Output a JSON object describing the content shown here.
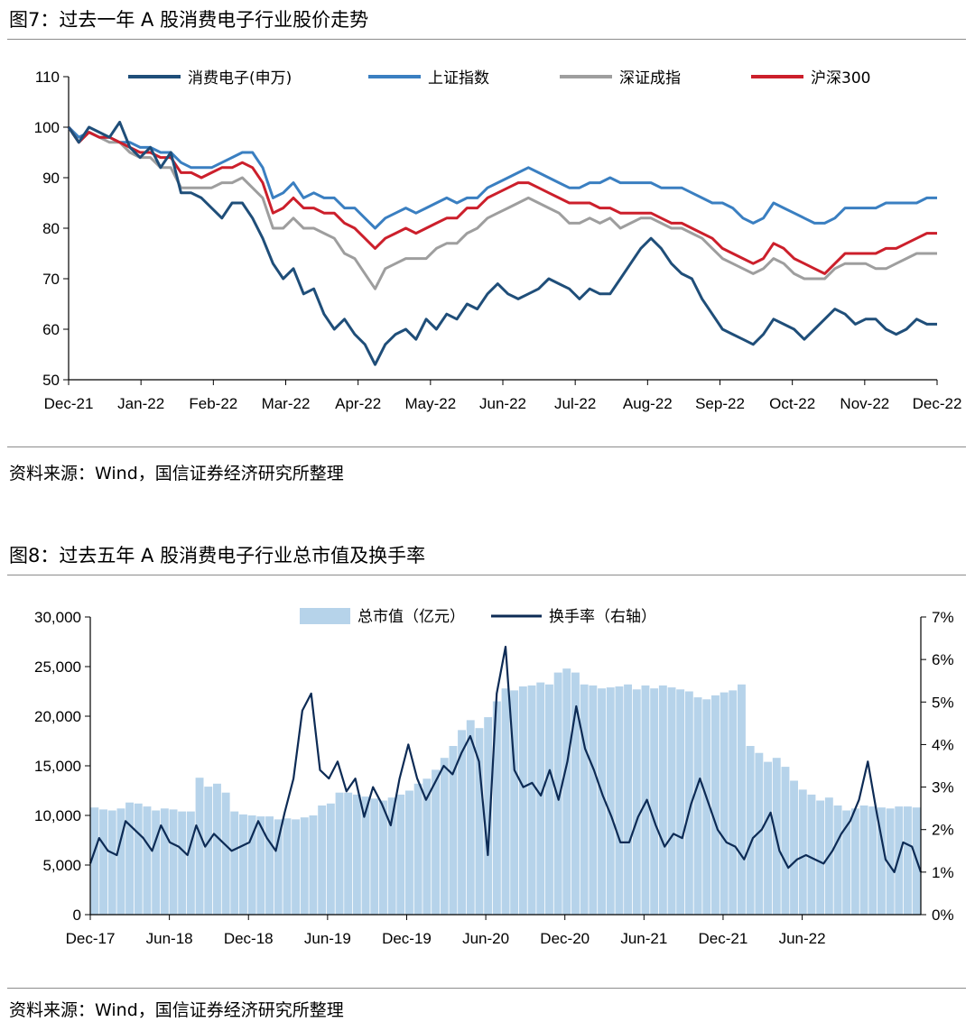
{
  "figure7": {
    "title": "图7：过去一年 A 股消费电子行业股价走势",
    "source": "资料来源：Wind，国信证券经济研究所整理"
  },
  "figure8": {
    "title": "图8：过去五年 A 股消费电子行业总市值及换手率",
    "source": "资料来源：Wind，国信证券经济研究所整理"
  },
  "chart_data": [
    {
      "type": "line",
      "title": "",
      "xlabel": "",
      "ylabel": "",
      "ylim": [
        50,
        110
      ],
      "yticks": [
        50,
        60,
        70,
        80,
        90,
        100,
        110
      ],
      "grid": false,
      "legend_position": "top",
      "x_tick_labels": [
        "Dec-21",
        "Jan-22",
        "Feb-22",
        "Mar-22",
        "Apr-22",
        "May-22",
        "Jun-22",
        "Jul-22",
        "Aug-22",
        "Sep-22",
        "Oct-22",
        "Nov-22",
        "Dec-22"
      ],
      "series": [
        {
          "name": "消费电子(申万)",
          "color": "#1f4e79",
          "values": [
            100,
            97,
            100,
            99,
            98,
            101,
            96,
            94,
            96,
            92,
            95,
            87,
            87,
            86,
            84,
            82,
            85,
            85,
            82,
            78,
            73,
            70,
            72,
            67,
            68,
            63,
            60,
            62,
            59,
            57,
            53,
            57,
            59,
            60,
            58,
            62,
            60,
            63,
            62,
            65,
            64,
            67,
            69,
            67,
            66,
            67,
            68,
            70,
            69,
            68,
            66,
            68,
            67,
            67,
            70,
            73,
            76,
            78,
            76,
            73,
            71,
            70,
            66,
            63,
            60,
            59,
            58,
            57,
            59,
            62,
            61,
            60,
            58,
            60,
            62,
            64,
            63,
            61,
            62,
            62,
            60,
            59,
            60,
            62,
            61,
            61
          ]
        },
        {
          "name": "上证指数",
          "color": "#3a7fc1",
          "values": [
            100,
            98,
            99,
            98,
            98,
            97,
            97,
            96,
            96,
            95,
            95,
            93,
            92,
            92,
            92,
            93,
            94,
            95,
            95,
            92,
            86,
            87,
            89,
            86,
            87,
            86,
            86,
            84,
            84,
            82,
            80,
            82,
            83,
            84,
            83,
            84,
            85,
            86,
            85,
            86,
            86,
            88,
            89,
            90,
            91,
            92,
            91,
            90,
            89,
            88,
            88,
            89,
            89,
            90,
            89,
            89,
            89,
            89,
            88,
            88,
            88,
            87,
            86,
            85,
            85,
            84,
            82,
            81,
            82,
            85,
            84,
            83,
            82,
            81,
            81,
            82,
            84,
            84,
            84,
            84,
            85,
            85,
            85,
            85,
            86,
            86
          ]
        },
        {
          "name": "深证成指",
          "color": "#9e9e9e",
          "values": [
            100,
            97,
            99,
            98,
            97,
            97,
            95,
            94,
            94,
            92,
            92,
            88,
            88,
            88,
            88,
            89,
            89,
            90,
            88,
            86,
            80,
            80,
            82,
            80,
            80,
            79,
            78,
            75,
            74,
            71,
            68,
            72,
            73,
            74,
            74,
            74,
            76,
            77,
            77,
            79,
            80,
            82,
            83,
            84,
            85,
            86,
            85,
            84,
            83,
            81,
            81,
            82,
            81,
            82,
            80,
            81,
            82,
            82,
            81,
            80,
            80,
            79,
            78,
            76,
            74,
            73,
            72,
            71,
            72,
            74,
            73,
            71,
            70,
            70,
            70,
            72,
            73,
            73,
            73,
            72,
            72,
            73,
            74,
            75,
            75,
            75
          ]
        },
        {
          "name": "沪深300",
          "color": "#cc1f2b",
          "values": [
            100,
            97,
            99,
            98,
            98,
            97,
            96,
            95,
            95,
            94,
            94,
            91,
            91,
            90,
            91,
            92,
            92,
            93,
            92,
            89,
            83,
            84,
            86,
            84,
            84,
            83,
            83,
            81,
            80,
            78,
            76,
            78,
            79,
            80,
            79,
            80,
            81,
            82,
            82,
            84,
            84,
            86,
            87,
            88,
            89,
            89,
            88,
            87,
            86,
            85,
            85,
            85,
            84,
            84,
            83,
            83,
            83,
            83,
            82,
            81,
            81,
            80,
            79,
            78,
            76,
            75,
            74,
            73,
            74,
            77,
            76,
            74,
            73,
            72,
            71,
            73,
            75,
            75,
            75,
            75,
            76,
            76,
            77,
            78,
            79,
            79
          ]
        }
      ]
    },
    {
      "type": "bar+line",
      "title": "",
      "xlabel": "",
      "ylabel": "",
      "x_tick_labels": [
        "Dec-17",
        "Jun-18",
        "Dec-18",
        "Jun-19",
        "Dec-19",
        "Jun-20",
        "Dec-20",
        "Jun-21",
        "Dec-21",
        "Jun-22"
      ],
      "left_axis": {
        "ylim": [
          0,
          30000
        ],
        "ticks": [
          0,
          5000,
          10000,
          15000,
          20000,
          25000,
          30000
        ],
        "tick_labels": [
          "0",
          "5,000",
          "10,000",
          "15,000",
          "20,000",
          "25,000",
          "30,000"
        ]
      },
      "right_axis": {
        "ylim": [
          0,
          7
        ],
        "ticks": [
          0,
          1,
          2,
          3,
          4,
          5,
          6,
          7
        ],
        "tick_labels": [
          "0%",
          "1%",
          "2%",
          "3%",
          "4%",
          "5%",
          "6%",
          "7%"
        ]
      },
      "grid": false,
      "legend_position": "top",
      "series": [
        {
          "name": "总市值（亿元）",
          "kind": "bar",
          "axis": "left",
          "color": "#b6d3ea",
          "values": [
            10800,
            10600,
            10500,
            10700,
            11300,
            11200,
            10900,
            10500,
            10700,
            10600,
            10400,
            10400,
            13800,
            12900,
            13200,
            12300,
            10400,
            10100,
            10000,
            9900,
            9900,
            9600,
            9700,
            9600,
            9800,
            10000,
            11000,
            11200,
            12300,
            12300,
            12100,
            11900,
            11700,
            11500,
            11800,
            12100,
            12500,
            13200,
            13700,
            14600,
            15800,
            17000,
            18600,
            19600,
            18800,
            19900,
            21500,
            22800,
            22600,
            23000,
            23100,
            23400,
            23200,
            24400,
            24800,
            24400,
            23200,
            23100,
            22800,
            22900,
            23000,
            23200,
            22700,
            23100,
            22800,
            23100,
            22900,
            22700,
            22500,
            21900,
            21700,
            22100,
            22400,
            22600,
            23200,
            17000,
            16300,
            15400,
            15800,
            14900,
            13500,
            12600,
            12100,
            11500,
            11800,
            11000,
            10500,
            10700,
            11000,
            10900,
            10800,
            10700,
            10900,
            10900,
            10800
          ]
        },
        {
          "name": "换手率（右轴）",
          "kind": "line",
          "axis": "right",
          "color": "#0d2b55",
          "values": [
            1.2,
            1.8,
            1.5,
            1.4,
            2.2,
            2.0,
            1.8,
            1.5,
            2.1,
            1.7,
            1.6,
            1.4,
            2.1,
            1.6,
            1.9,
            1.7,
            1.5,
            1.6,
            1.7,
            2.2,
            1.8,
            1.5,
            2.4,
            3.2,
            4.8,
            5.2,
            3.4,
            3.2,
            3.6,
            2.9,
            3.2,
            2.3,
            3.0,
            2.6,
            2.1,
            3.2,
            4.0,
            3.2,
            2.7,
            3.1,
            3.5,
            3.3,
            3.8,
            4.2,
            3.6,
            1.4,
            5.2,
            6.3,
            3.4,
            3.0,
            3.1,
            2.8,
            3.4,
            2.7,
            3.6,
            4.9,
            3.9,
            3.4,
            2.8,
            2.3,
            1.7,
            1.7,
            2.3,
            2.7,
            2.1,
            1.6,
            1.9,
            1.8,
            2.6,
            3.2,
            2.6,
            2.0,
            1.7,
            1.6,
            1.3,
            1.8,
            2.0,
            2.4,
            1.5,
            1.1,
            1.3,
            1.4,
            1.3,
            1.2,
            1.5,
            1.9,
            2.2,
            2.7,
            3.6,
            2.4,
            1.3,
            1.0,
            1.7,
            1.6,
            1.0
          ]
        }
      ]
    }
  ]
}
